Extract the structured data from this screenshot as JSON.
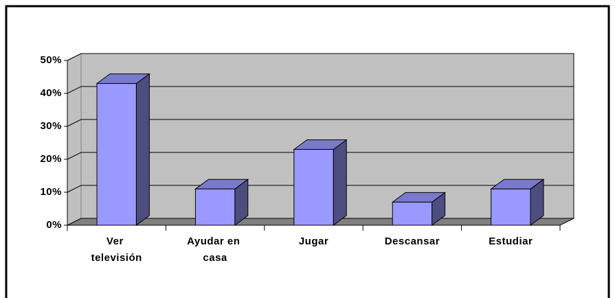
{
  "chart_data": {
    "type": "bar3d",
    "categories": [
      "Ver televisión",
      "Ayudar en casa",
      "Jugar",
      "Descansar",
      "Estudiar"
    ],
    "values": [
      43,
      11,
      23,
      7,
      11
    ],
    "color": "#9999ff",
    "ylim": [
      0,
      50
    ],
    "yticks": [
      {
        "value": 0,
        "label": "0%"
      },
      {
        "value": 10,
        "label": "10%"
      },
      {
        "value": 20,
        "label": "20%"
      },
      {
        "value": 30,
        "label": "30%"
      },
      {
        "value": 40,
        "label": "40%"
      },
      {
        "value": 50,
        "label": "50%"
      }
    ],
    "grid": true
  }
}
